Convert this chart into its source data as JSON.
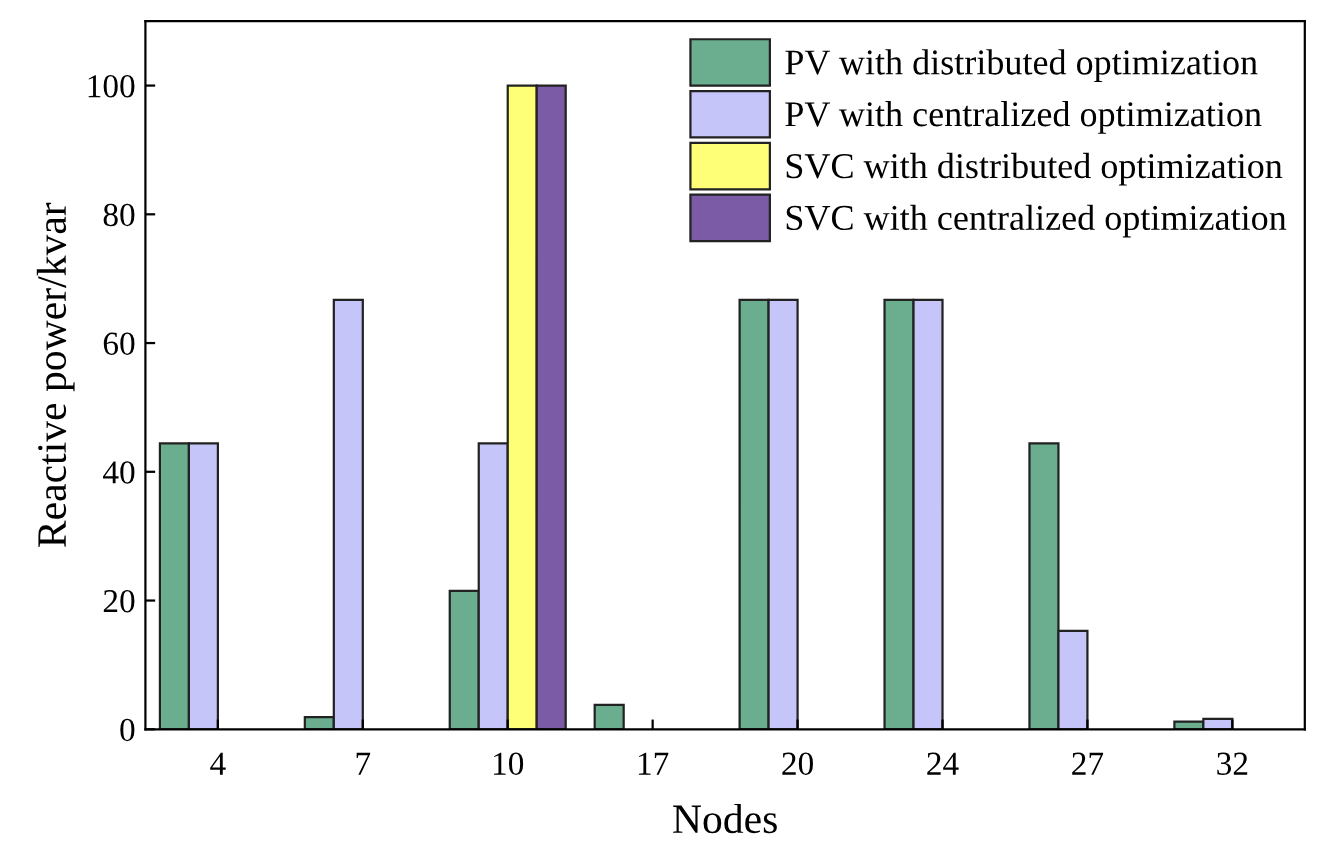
{
  "chart_data": {
    "type": "bar",
    "xlabel": "Nodes",
    "ylabel": "Reactive power/kvar",
    "categories": [
      "4",
      "7",
      "10",
      "17",
      "20",
      "24",
      "27",
      "32"
    ],
    "series": [
      {
        "name": "PV with distributed optimization",
        "color": "#6aae8f",
        "values": [
          44.4,
          1.9,
          21.5,
          3.8,
          66.7,
          66.7,
          44.4,
          1.2
        ]
      },
      {
        "name": "PV with centralized optimization",
        "color": "#c5c5fa",
        "values": [
          44.4,
          66.7,
          44.4,
          null,
          66.7,
          66.7,
          15.3,
          1.6
        ]
      },
      {
        "name": "SVC with distributed optimization",
        "color": "#ffff77",
        "values": [
          null,
          null,
          100,
          null,
          null,
          null,
          null,
          null
        ]
      },
      {
        "name": "SVC with centralized optimization",
        "color": "#7b5aa6",
        "values": [
          null,
          null,
          100,
          null,
          null,
          null,
          null,
          null
        ]
      }
    ],
    "ylim": [
      0,
      110
    ],
    "yticks": [
      0,
      20,
      40,
      60,
      80,
      100
    ],
    "grid": false,
    "legend": "top right"
  }
}
